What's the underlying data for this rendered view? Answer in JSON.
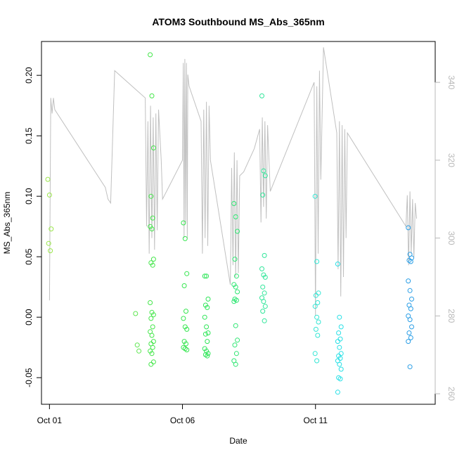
{
  "chart_data": {
    "type": "scatter",
    "title": "ATOM3 Southbound MS_Abs_365nm",
    "xlabel": "Date",
    "ylabel": "MS_Abs_365nm",
    "x_ticks": [
      {
        "label": "Oct 01",
        "day": 1
      },
      {
        "label": "Oct 06",
        "day": 6
      },
      {
        "label": "Oct 11",
        "day": 11
      }
    ],
    "xlim_days": [
      0.7,
      15.5
    ],
    "ylim": [
      -0.072,
      0.228
    ],
    "y_ticks": [
      {
        "value": -0.05,
        "label": "-0.05"
      },
      {
        "value": 0.0,
        "label": "0.00"
      },
      {
        "value": 0.05,
        "label": "0.05"
      },
      {
        "value": 0.1,
        "label": "0.10"
      },
      {
        "value": 0.15,
        "label": "0.15"
      },
      {
        "value": 0.2,
        "label": "0.20"
      }
    ],
    "y2lim": [
      257.3,
      350.5
    ],
    "y2_ticks": [
      {
        "value": 260,
        "label": "260"
      },
      {
        "value": 280,
        "label": "280"
      },
      {
        "value": 300,
        "label": "300"
      },
      {
        "value": 320,
        "label": "320"
      },
      {
        "value": 340,
        "label": "340"
      }
    ],
    "grid": false,
    "line_color": "#c0c0c0",
    "groups": [
      {
        "day": 1.0,
        "color": "#9ae64a",
        "values": [
          0.114,
          0.101,
          0.073,
          0.061,
          0.055
        ]
      },
      {
        "day": 4.3,
        "color": "#5ee650",
        "values": [
          0.003,
          -0.023,
          -0.028
        ]
      },
      {
        "day": 4.85,
        "color": "#44e64a",
        "values": [
          0.217,
          0.183,
          0.14,
          0.1,
          0.082,
          0.075,
          0.073,
          0.048,
          0.045,
          0.043,
          0.012,
          0.004,
          0.002,
          -0.001,
          -0.008,
          -0.012,
          -0.015,
          -0.02,
          -0.022,
          -0.025,
          -0.028,
          -0.03,
          -0.037,
          -0.039
        ]
      },
      {
        "day": 6.1,
        "color": "#36e650",
        "values": [
          0.078,
          0.065,
          0.036,
          0.026,
          0.005,
          -0.001,
          -0.008,
          -0.01,
          -0.02,
          -0.022,
          -0.025,
          -0.026,
          -0.027
        ]
      },
      {
        "day": 6.9,
        "color": "#2ee658",
        "values": [
          0.034,
          0.034,
          0.015,
          0.01,
          0.008,
          0.0,
          -0.008,
          -0.013,
          -0.014,
          -0.02,
          -0.026,
          -0.028,
          -0.03,
          -0.031,
          -0.032
        ]
      },
      {
        "day": 8.0,
        "color": "#2ee672",
        "values": [
          0.094,
          0.083,
          0.071,
          0.048,
          0.034,
          0.027,
          0.025,
          0.021,
          0.015,
          0.014,
          0.013,
          -0.007,
          -0.019,
          -0.023,
          -0.03,
          -0.036,
          -0.039
        ]
      },
      {
        "day": 9.05,
        "color": "#30e69a",
        "values": [
          0.183,
          0.121,
          0.117,
          0.101,
          0.051,
          0.04,
          0.035,
          0.033,
          0.025,
          0.02,
          0.016,
          0.013,
          0.009,
          0.005,
          -0.003
        ]
      },
      {
        "day": 11.05,
        "color": "#33e6d4",
        "values": [
          0.1,
          0.046,
          0.02,
          0.018,
          0.012,
          0.009,
          0.0,
          -0.004,
          -0.01,
          -0.015,
          -0.03,
          -0.036
        ]
      },
      {
        "day": 11.9,
        "color": "#28e0e6",
        "values": [
          0.044,
          0.0,
          -0.008,
          -0.013,
          -0.018,
          -0.02,
          -0.025,
          -0.03,
          -0.032,
          -0.034,
          -0.036,
          -0.039,
          -0.043,
          -0.05,
          -0.051,
          -0.062
        ]
      },
      {
        "day": 14.55,
        "color": "#2a9ee6",
        "values": [
          0.074,
          0.052,
          0.049,
          0.047,
          0.046,
          0.03,
          0.022,
          0.015,
          0.01,
          0.007,
          0.001,
          -0.002,
          -0.008,
          -0.013,
          -0.017,
          -0.02,
          -0.041
        ]
      }
    ],
    "secondary_series": {
      "name": "",
      "path": [
        [
          1.0,
          284
        ],
        [
          1.05,
          336
        ],
        [
          1.1,
          332
        ],
        [
          1.15,
          336
        ],
        [
          1.2,
          333
        ],
        [
          3.1,
          313
        ],
        [
          3.2,
          310
        ],
        [
          3.3,
          309
        ],
        [
          3.45,
          343
        ],
        [
          4.6,
          336
        ],
        [
          4.65,
          303
        ],
        [
          4.7,
          330
        ],
        [
          4.75,
          296
        ],
        [
          4.8,
          334
        ],
        [
          4.85,
          300
        ],
        [
          4.9,
          331
        ],
        [
          4.95,
          297
        ],
        [
          5.0,
          332
        ],
        [
          5.05,
          302
        ],
        [
          5.1,
          333
        ],
        [
          5.2,
          320
        ],
        [
          5.25,
          310
        ],
        [
          6.0,
          320
        ],
        [
          6.03,
          345
        ],
        [
          6.06,
          300
        ],
        [
          6.09,
          346
        ],
        [
          6.12,
          304
        ],
        [
          6.15,
          345
        ],
        [
          6.18,
          300
        ],
        [
          6.2,
          342
        ],
        [
          6.25,
          339
        ],
        [
          6.7,
          330
        ],
        [
          6.75,
          296
        ],
        [
          6.8,
          333
        ],
        [
          6.85,
          300
        ],
        [
          6.9,
          335
        ],
        [
          6.95,
          298
        ],
        [
          7.0,
          334
        ],
        [
          7.05,
          320
        ],
        [
          7.8,
          288
        ],
        [
          7.85,
          318
        ],
        [
          7.9,
          293
        ],
        [
          7.95,
          322
        ],
        [
          8.0,
          290
        ],
        [
          8.05,
          320
        ],
        [
          8.1,
          291
        ],
        [
          8.15,
          316
        ],
        [
          8.3,
          317
        ],
        [
          8.7,
          323
        ],
        [
          8.9,
          328
        ],
        [
          8.95,
          304
        ],
        [
          9.0,
          331
        ],
        [
          9.05,
          308
        ],
        [
          9.1,
          330
        ],
        [
          9.15,
          305
        ],
        [
          9.2,
          329
        ],
        [
          9.3,
          312
        ],
        [
          10.95,
          340
        ],
        [
          11.0,
          280
        ],
        [
          11.05,
          339
        ],
        [
          11.1,
          296
        ],
        [
          11.15,
          343
        ],
        [
          11.2,
          315
        ],
        [
          11.3,
          349
        ],
        [
          11.8,
          327
        ],
        [
          11.85,
          292
        ],
        [
          11.9,
          330
        ],
        [
          11.95,
          285
        ],
        [
          12.0,
          329
        ],
        [
          12.05,
          290
        ],
        [
          12.1,
          328
        ],
        [
          12.15,
          300
        ],
        [
          12.2,
          327
        ],
        [
          14.4,
          303
        ],
        [
          14.45,
          311
        ],
        [
          14.5,
          293
        ],
        [
          14.55,
          312
        ],
        [
          14.6,
          296
        ],
        [
          14.65,
          310
        ],
        [
          14.7,
          295
        ],
        [
          14.75,
          309
        ],
        [
          14.8,
          305
        ]
      ]
    }
  }
}
